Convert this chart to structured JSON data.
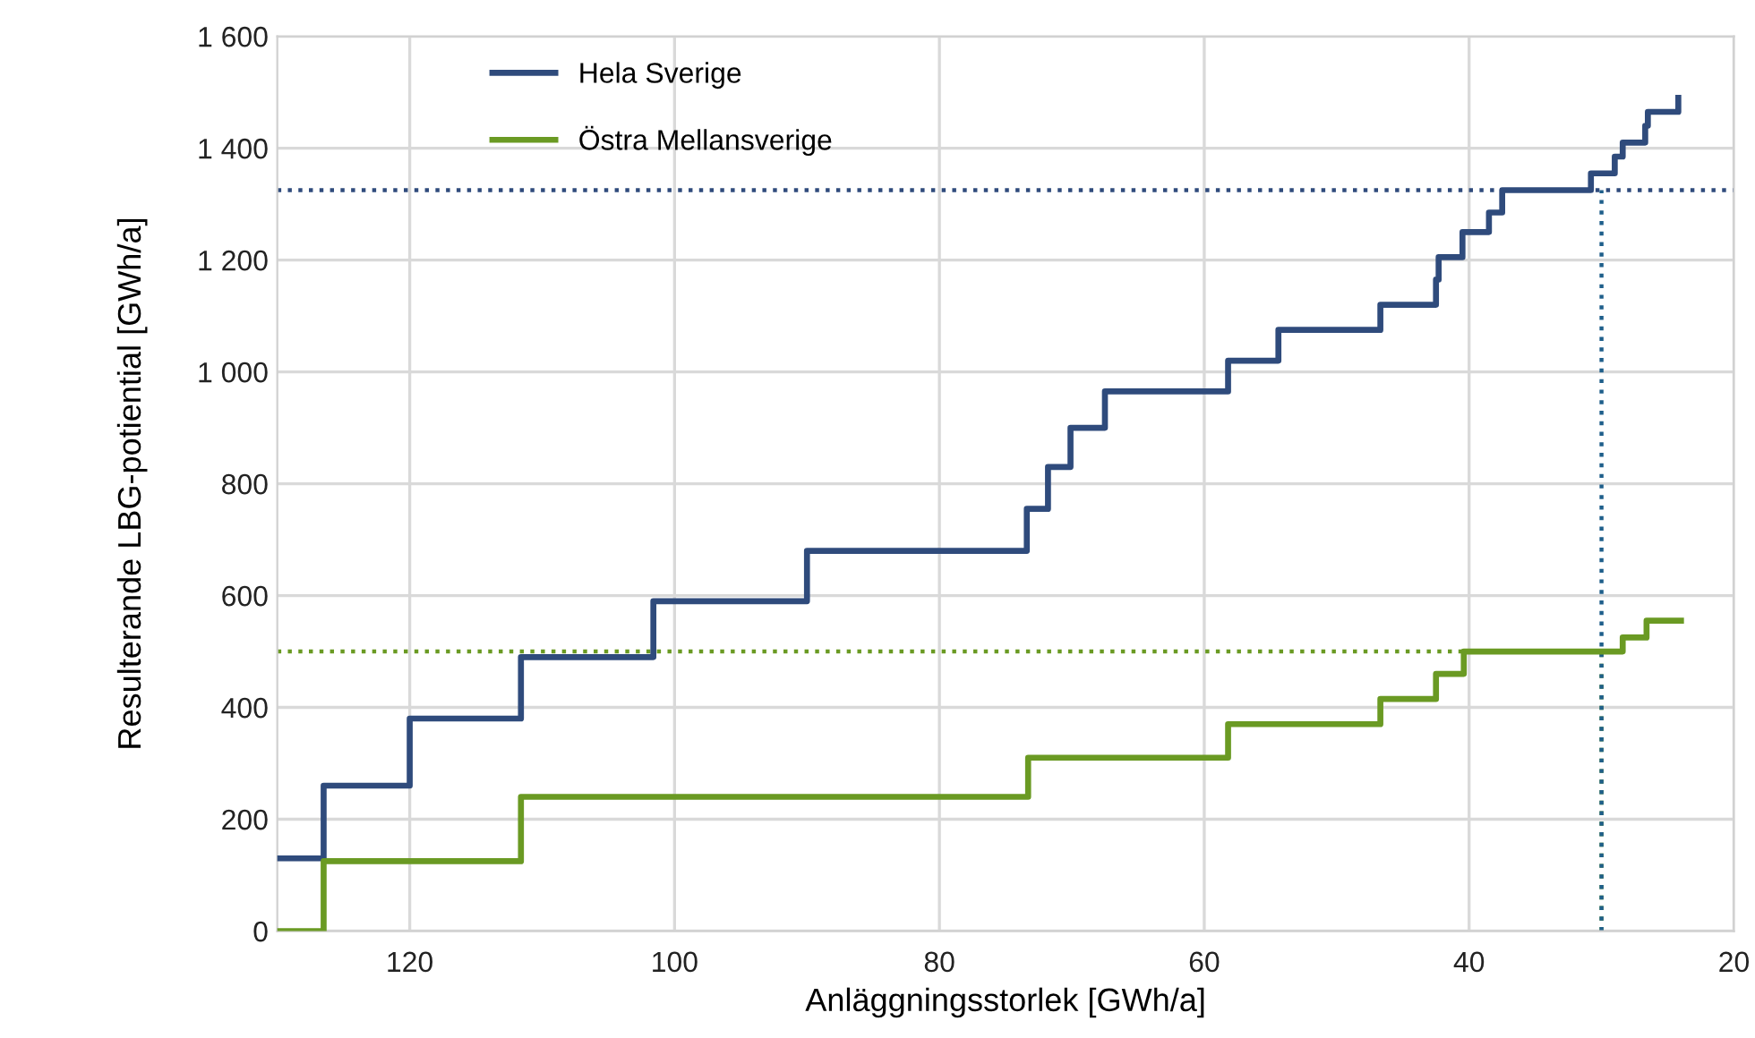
{
  "chart_data": {
    "type": "step",
    "xlabel": "Anläggningsstorlek [GWh/a]",
    "ylabel": "Resulterande LBG-potiential [GWh/a]",
    "xlim": [
      130,
      20
    ],
    "xticks": [
      120,
      100,
      80,
      60,
      40,
      20
    ],
    "ylim": [
      0,
      1600
    ],
    "yticks": [
      0,
      200,
      400,
      600,
      800,
      {
        "value": 1000,
        "label": "1 000"
      },
      {
        "value": 1200,
        "label": "1 200"
      },
      {
        "value": 1400,
        "label": "1 400"
      },
      {
        "value": 1600,
        "label": "1 600"
      }
    ],
    "grid": true,
    "legend": "top left",
    "series": [
      {
        "name": "Hela Sverige",
        "color": "#2f4b7c",
        "x": [
          130,
          126.5,
          120,
          111.6,
          101.6,
          90,
          73.4,
          71.8,
          70.1,
          67.5,
          58.2,
          54.4,
          46.7,
          42.5,
          42.3,
          40.5,
          38.5,
          37.5,
          30.8,
          29,
          28.4,
          26.7,
          26.5,
          24.2
        ],
        "values": [
          130,
          260,
          380,
          490,
          590,
          680,
          755,
          830,
          900,
          965,
          1020,
          1075,
          1120,
          1165,
          1205,
          1250,
          1285,
          1325,
          1355,
          1385,
          1410,
          1440,
          1465,
          1490
        ]
      },
      {
        "name": "Östra Mellansverige",
        "color": "#6a9a23",
        "x": [
          130,
          126.5,
          111.6,
          73.3,
          58.2,
          46.7,
          42.5,
          40.4,
          28.4,
          26.6,
          24
        ],
        "values": [
          0,
          125,
          240,
          310,
          370,
          415,
          460,
          500,
          525,
          555,
          555
        ]
      }
    ],
    "ref_lines": [
      {
        "axis": "y",
        "value": 1325,
        "color": "#2f4b7c",
        "line_style": "dotted"
      },
      {
        "axis": "y",
        "value": 500,
        "color": "#6a9a23",
        "line_style": "dotted"
      },
      {
        "axis": "x",
        "value": 30,
        "color": "#6a9a23",
        "line_style": "dotted"
      },
      {
        "axis": "x",
        "value": 30,
        "color": "#1f5f8b",
        "line_style": "dotted"
      }
    ]
  }
}
